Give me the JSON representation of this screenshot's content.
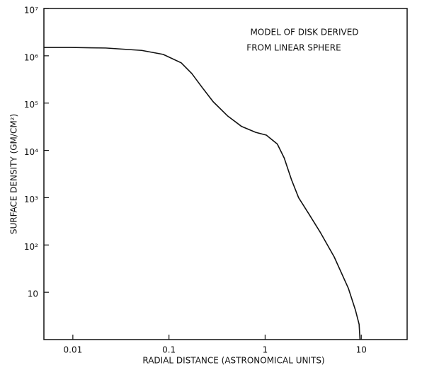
{
  "chart_data": {
    "type": "line",
    "annotation": [
      "MODEL OF DISK DERIVED",
      "FROM LINEAR SPHERE"
    ],
    "x_label": "RADIAL DISTANCE (ASTRONOMICAL UNITS)",
    "y_label": "SURFACE DENSITY (GM/CM²)",
    "xscale": "log",
    "yscale": "log",
    "xlim": [
      0.005,
      30
    ],
    "ylim": [
      1,
      10000000
    ],
    "xticks": [
      0.01,
      0.1,
      1,
      10
    ],
    "yticks": [
      10,
      {
        "value": 100,
        "label": "10²"
      },
      {
        "value": 1000,
        "label": "10³"
      },
      {
        "value": 10000,
        "label": "10⁴"
      },
      {
        "value": 100000,
        "label": "10⁵"
      },
      {
        "value": 1000000,
        "label": "10⁶"
      },
      {
        "value": 10000000,
        "label": "10⁷"
      }
    ],
    "series": [
      {
        "color": "#111111",
        "x": [
          0.005,
          0.0095,
          0.022,
          0.052,
          0.087,
          0.134,
          0.173,
          0.223,
          0.288,
          0.405,
          0.57,
          0.8,
          1.03,
          1.34,
          1.58,
          1.88,
          2.23,
          2.88,
          3.72,
          5.23,
          7.36,
          8.7,
          9.5,
          9.7
        ],
        "values": [
          1500000,
          1500000,
          1460000,
          1300000,
          1070000,
          710000,
          420000,
          210000,
          107000,
          54000,
          32000,
          24000,
          21000,
          13600,
          6900,
          2400,
          1000,
          440,
          190,
          56,
          12,
          4.2,
          2.1,
          1
        ]
      }
    ]
  }
}
